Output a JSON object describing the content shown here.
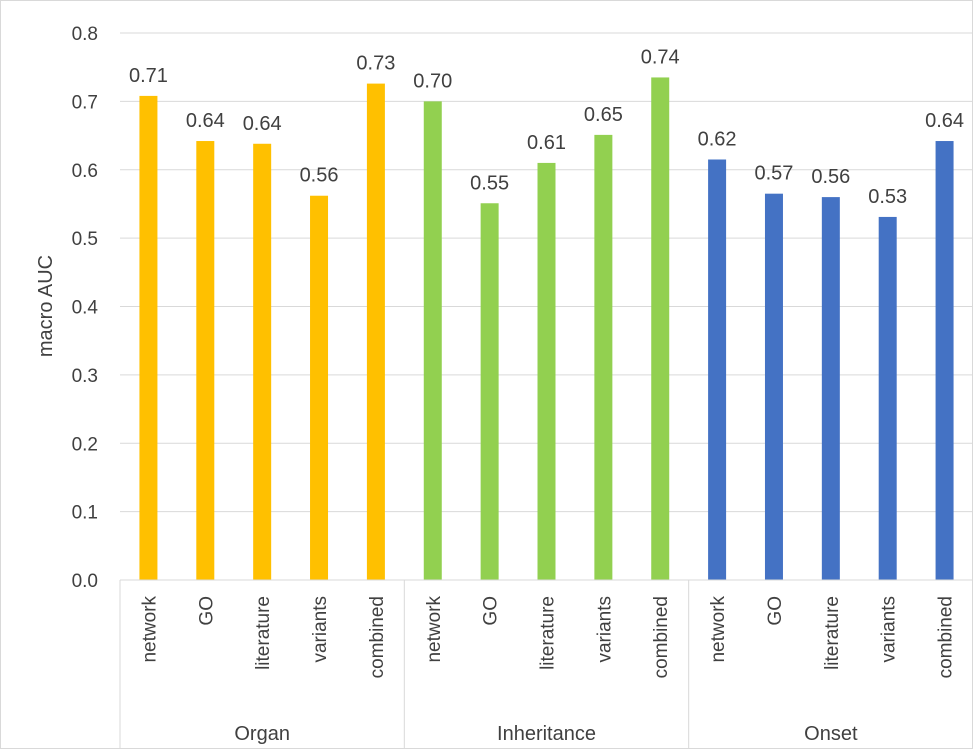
{
  "chart_data": {
    "type": "bar",
    "title": "",
    "ylabel": "macro AUC",
    "xlabel": "",
    "ylim": [
      0,
      0.8
    ],
    "yticks": [
      "0.0",
      "0.1",
      "0.2",
      "0.3",
      "0.4",
      "0.5",
      "0.6",
      "0.7",
      "0.8"
    ],
    "grid": true,
    "legend": "none",
    "groups": [
      {
        "name": "Organ",
        "color": "#FFC000",
        "categories": [
          "network",
          "GO",
          "literature",
          "variants",
          "combined"
        ],
        "values": [
          0.708,
          0.642,
          0.638,
          0.562,
          0.726
        ],
        "labels": [
          "0.71",
          "0.64",
          "0.64",
          "0.56",
          "0.73"
        ]
      },
      {
        "name": "Inheritance",
        "color": "#92D050",
        "categories": [
          "network",
          "GO",
          "literature",
          "variants",
          "combined"
        ],
        "values": [
          0.7,
          0.551,
          0.61,
          0.651,
          0.735
        ],
        "labels": [
          "0.70",
          "0.55",
          "0.61",
          "0.65",
          "0.74"
        ]
      },
      {
        "name": "Onset",
        "color": "#4472C4",
        "categories": [
          "network",
          "GO",
          "literature",
          "variants",
          "combined"
        ],
        "values": [
          0.615,
          0.565,
          0.56,
          0.531,
          0.642
        ],
        "labels": [
          "0.62",
          "0.57",
          "0.56",
          "0.53",
          "0.64"
        ]
      }
    ]
  }
}
